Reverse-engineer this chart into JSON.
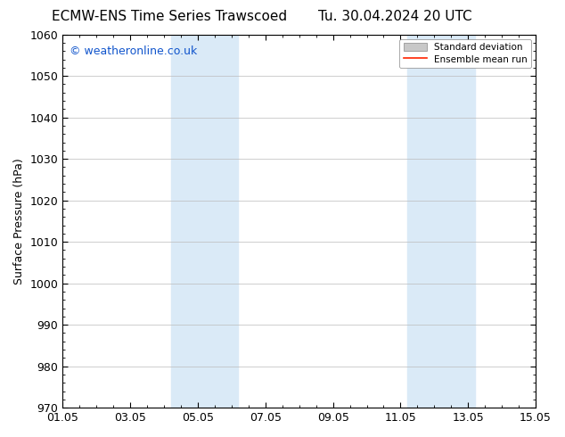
{
  "title_left": "ECMW-ENS Time Series Trawscoed",
  "title_right": "Tu. 30.04.2024 20 UTC",
  "ylabel": "Surface Pressure (hPa)",
  "ylim": [
    970,
    1060
  ],
  "yticks": [
    970,
    980,
    990,
    1000,
    1010,
    1020,
    1030,
    1040,
    1050,
    1060
  ],
  "xtick_labels": [
    "01.05",
    "03.05",
    "05.05",
    "07.05",
    "09.05",
    "11.05",
    "13.05",
    "15.05"
  ],
  "xtick_values": [
    0,
    2,
    4,
    6,
    8,
    10,
    12,
    14
  ],
  "xlim": [
    0,
    14
  ],
  "shaded_bands": [
    {
      "x_start": 3.2,
      "x_end": 5.2
    },
    {
      "x_start": 10.2,
      "x_end": 12.2
    }
  ],
  "shade_color": "#daeaf7",
  "watermark_text": "© weatheronline.co.uk",
  "watermark_color": "#1155cc",
  "legend_std_color": "#c8c8c8",
  "legend_mean_color": "#ff2200",
  "background_color": "#ffffff",
  "grid_color": "#bbbbbb",
  "tick_color": "#000000",
  "title_fontsize": 11,
  "label_fontsize": 9,
  "tick_fontsize": 9,
  "watermark_fontsize": 9
}
